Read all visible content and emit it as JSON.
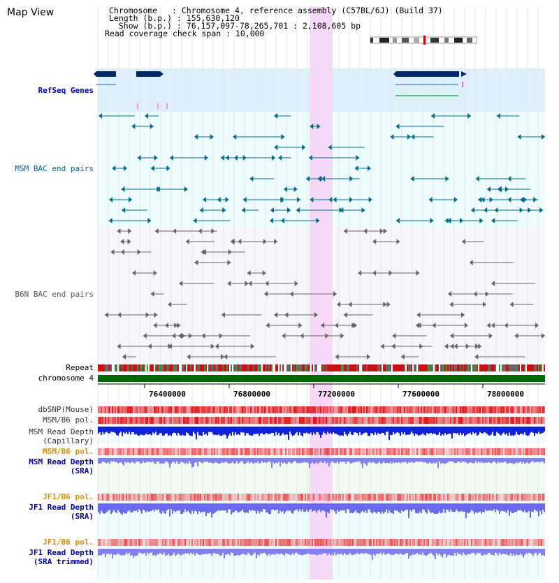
{
  "title": "Map View",
  "info": {
    "chromosome": "Chromosome   : Chromosome 4, reference assembly (C57BL/6J) (Build 37)",
    "length": "Length (b.p.) : 155,630,120",
    "show": "  Show (b.p.) : 76,157,097-78,265,701 : 2,108,605 bp",
    "coverage": "Read coverage check span : 10,000"
  },
  "tracks": {
    "refseq": "RefSeq Genes",
    "msm_bac": "MSM BAC end pairs",
    "b6n_bac": "B6N BAC end pairs",
    "repeat": "Repeat",
    "chromosome": "chromosome 4",
    "dbsnp": "dbSNP(Mouse)",
    "msm_b6_pol_1": "MSM/B6 pol.",
    "msm_depth_cap_1": "MSM Read Depth",
    "msm_depth_cap_2": "(Capillary)",
    "msm_b6_pol_2": "MSM/B6 pol.",
    "msm_depth_sra_1": "MSM Read Depth",
    "msm_depth_sra_2": "(SRA)",
    "jf1_b6_pol_1": "JF1/B6 pol.",
    "jf1_depth_sra_1": "JF1 Read Depth",
    "jf1_depth_sra_2": "(SRA)",
    "jf1_b6_pol_2": "JF1/B6 pol.",
    "jf1_depth_trim_1": "JF1 Read Depth",
    "jf1_depth_trim_2": "(SRA trimmed)"
  },
  "axis_ticks": [
    "76400000",
    "76800000",
    "77200000",
    "77600000",
    "78000000"
  ],
  "colors": {
    "refseq_label": "#0000cc",
    "msm_label": "#006688",
    "b6n_label": "#555555",
    "orange_label": "#e09000",
    "blue_label": "#0000aa",
    "highlight": "#f8d8f8",
    "chromosome_bar": "#006600"
  }
}
